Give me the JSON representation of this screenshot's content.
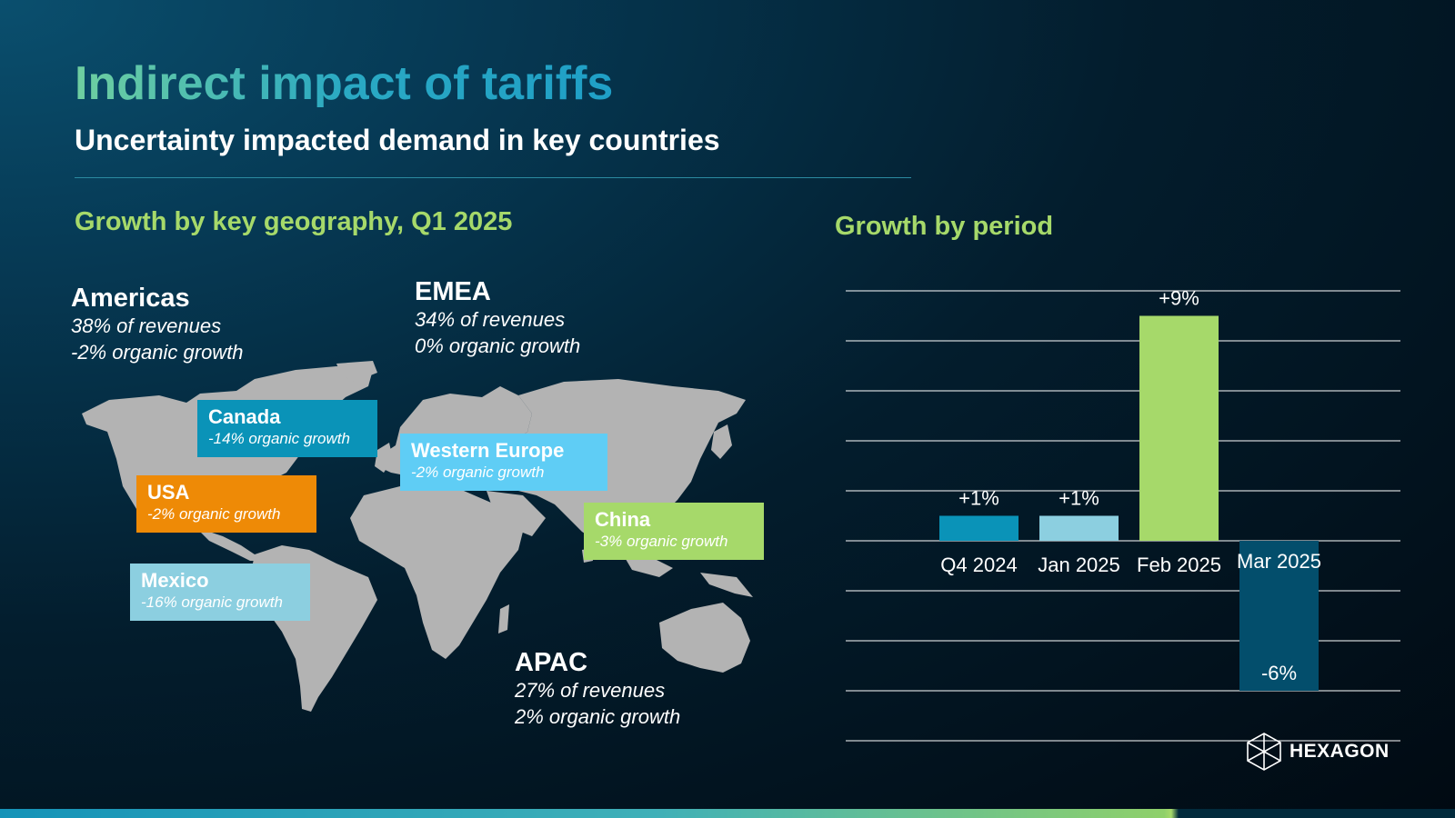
{
  "title": "Indirect impact of tariffs",
  "subtitle": "Uncertainty impacted demand in key countries",
  "geo_heading": "Growth by key geography, Q1 2025",
  "period_heading": "Growth by period",
  "regions": {
    "americas": {
      "name": "Americas",
      "line1": "38% of revenues",
      "line2": "-2% organic growth"
    },
    "emea": {
      "name": "EMEA",
      "line1": "34% of revenues",
      "line2": "0% organic growth"
    },
    "apac": {
      "name": "APAC",
      "line1": "27% of revenues",
      "line2": "2% organic growth"
    }
  },
  "countries": {
    "canada": {
      "name": "Canada",
      "growth": "-14% organic growth",
      "color": "#0a93b8"
    },
    "usa": {
      "name": "USA",
      "growth": "-2% organic growth",
      "color": "#ee8a06"
    },
    "mexico": {
      "name": "Mexico",
      "growth": "-16% organic growth",
      "color": "#8ccfe0"
    },
    "western_europe": {
      "name": "Western Europe",
      "growth": "-2% organic growth",
      "color": "#5fcdf5"
    },
    "china": {
      "name": "China",
      "growth": "-3% organic growth",
      "color": "#a6d96a"
    }
  },
  "chart_data": {
    "type": "bar",
    "title": "Growth by period",
    "categories": [
      "Q4 2024",
      "Jan 2025",
      "Feb 2025",
      "Mar 2025"
    ],
    "values": [
      1,
      1,
      9,
      -6
    ],
    "labels": [
      "+1%",
      "+1%",
      "+9%",
      "-6%"
    ],
    "colors": [
      "#0a93b8",
      "#8ccfe0",
      "#a6d96a",
      "#034e6c"
    ],
    "ylim": [
      -8,
      10
    ],
    "grid": true,
    "legend": "none"
  },
  "logo": {
    "text": "HEXAGON"
  }
}
